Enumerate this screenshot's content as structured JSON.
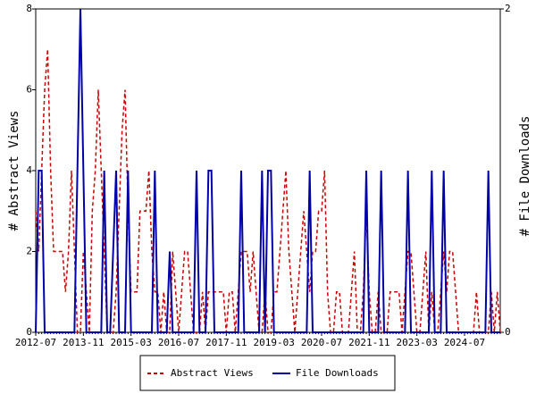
{
  "chart_data": {
    "type": "line",
    "y_label": "# Abstract Views",
    "y2_label": "# File Downloads",
    "categories": [
      "2012-07",
      null,
      null,
      null,
      null,
      null,
      null,
      null,
      null,
      null,
      null,
      null,
      null,
      null,
      null,
      null,
      "2013-11",
      null,
      null,
      null,
      null,
      null,
      null,
      null,
      null,
      null,
      null,
      null,
      null,
      null,
      null,
      null,
      "2015-03",
      null,
      null,
      null,
      null,
      null,
      null,
      null,
      null,
      null,
      null,
      null,
      null,
      null,
      null,
      null,
      "2016-07",
      null,
      null,
      null,
      null,
      null,
      null,
      null,
      null,
      null,
      null,
      null,
      null,
      null,
      null,
      null,
      "2017-11",
      null,
      null,
      null,
      null,
      null,
      null,
      null,
      null,
      null,
      null,
      null,
      null,
      null,
      null,
      null,
      "2019-03",
      null,
      null,
      null,
      null,
      null,
      null,
      null,
      null,
      null,
      null,
      null,
      null,
      null,
      null,
      null,
      "2020-07",
      null,
      null,
      null,
      null,
      null,
      null,
      null,
      null,
      null,
      null,
      null,
      null,
      null,
      null,
      null,
      "2021-11",
      null,
      null,
      null,
      null,
      null,
      null,
      null,
      null,
      null,
      null,
      null,
      null,
      null,
      null,
      null,
      "2023-03",
      null,
      null,
      null,
      null,
      null,
      null,
      null,
      null,
      null,
      null,
      null,
      null,
      null,
      null,
      null,
      "2024-07",
      null,
      null,
      null,
      null,
      null,
      null,
      null,
      null,
      null,
      null,
      null,
      null
    ],
    "series": [
      {
        "name": "Abstract Views",
        "color": "#cc0000",
        "dash": true,
        "values": [
          3,
          2,
          4,
          6,
          7,
          4,
          2,
          2,
          2,
          2,
          1,
          2,
          4,
          2,
          0,
          0,
          2,
          1,
          0,
          3,
          4,
          6,
          4,
          2,
          0,
          0,
          0,
          1,
          3,
          5,
          6,
          3,
          1,
          1,
          1,
          3,
          3,
          3,
          4,
          2,
          1,
          1,
          0,
          1,
          0,
          0,
          2,
          1,
          0,
          1,
          2,
          2,
          1,
          0,
          0,
          0,
          1,
          0,
          1,
          1,
          1,
          1,
          1,
          1,
          0,
          1,
          1,
          0,
          1,
          2,
          2,
          2,
          1,
          2,
          1,
          0,
          0,
          1,
          0,
          0,
          1,
          1,
          2,
          3,
          4,
          2,
          1,
          0,
          1,
          2,
          3,
          2,
          1,
          2,
          2,
          3,
          3,
          4,
          1,
          0,
          0,
          1,
          1,
          0,
          0,
          0,
          1,
          2,
          0,
          0,
          1,
          3,
          1,
          0,
          0,
          1,
          0,
          0,
          0,
          1,
          1,
          1,
          1,
          0,
          1,
          2,
          2,
          1,
          0,
          0,
          1,
          2,
          0,
          1,
          0,
          0,
          1,
          2,
          1,
          2,
          2,
          1,
          0,
          0,
          0,
          0,
          0,
          0,
          1,
          0,
          0,
          0,
          0,
          1,
          0,
          1,
          0
        ]
      },
      {
        "name": "File Downloads",
        "color": "#0000aa",
        "axis": "y2",
        "values": [
          0,
          1,
          1,
          0,
          0,
          0,
          0,
          0,
          0,
          0,
          0,
          0,
          0,
          0,
          1,
          2,
          1,
          0,
          0,
          0,
          0,
          0,
          0,
          1,
          0,
          0,
          0.5,
          1,
          0,
          0,
          0,
          1,
          0,
          0,
          0,
          0,
          0,
          0,
          0,
          0,
          1,
          0,
          0,
          0,
          0,
          0.5,
          0,
          0,
          0,
          0,
          0,
          0,
          0,
          0,
          1,
          0,
          0,
          0,
          1,
          1,
          0,
          0,
          0,
          0,
          0,
          0,
          0,
          0,
          0,
          1,
          0,
          0,
          0,
          0,
          0,
          0,
          1,
          0,
          1,
          1,
          0,
          0,
          0,
          0,
          0,
          0,
          0,
          0,
          0,
          0,
          0,
          0,
          1,
          0,
          0,
          0,
          0,
          0,
          0,
          0,
          0,
          0,
          0,
          0,
          0,
          0,
          0,
          0,
          0,
          0,
          0,
          1,
          0,
          0,
          0,
          0,
          1,
          0,
          0,
          0,
          0,
          0,
          0,
          0,
          0,
          1,
          0,
          0,
          0,
          0,
          0,
          0,
          0,
          1,
          0,
          0,
          0,
          1,
          0,
          0,
          0,
          0,
          0,
          0,
          0,
          0,
          0,
          0,
          0,
          0,
          0,
          0,
          1,
          0,
          0,
          0,
          0
        ]
      }
    ],
    "ylim": [
      0,
      8
    ],
    "yticks": [
      0,
      2,
      4,
      6,
      8
    ],
    "y2lim": [
      0,
      2
    ],
    "y2ticks": [
      0,
      2
    ],
    "legend": "bottom"
  }
}
